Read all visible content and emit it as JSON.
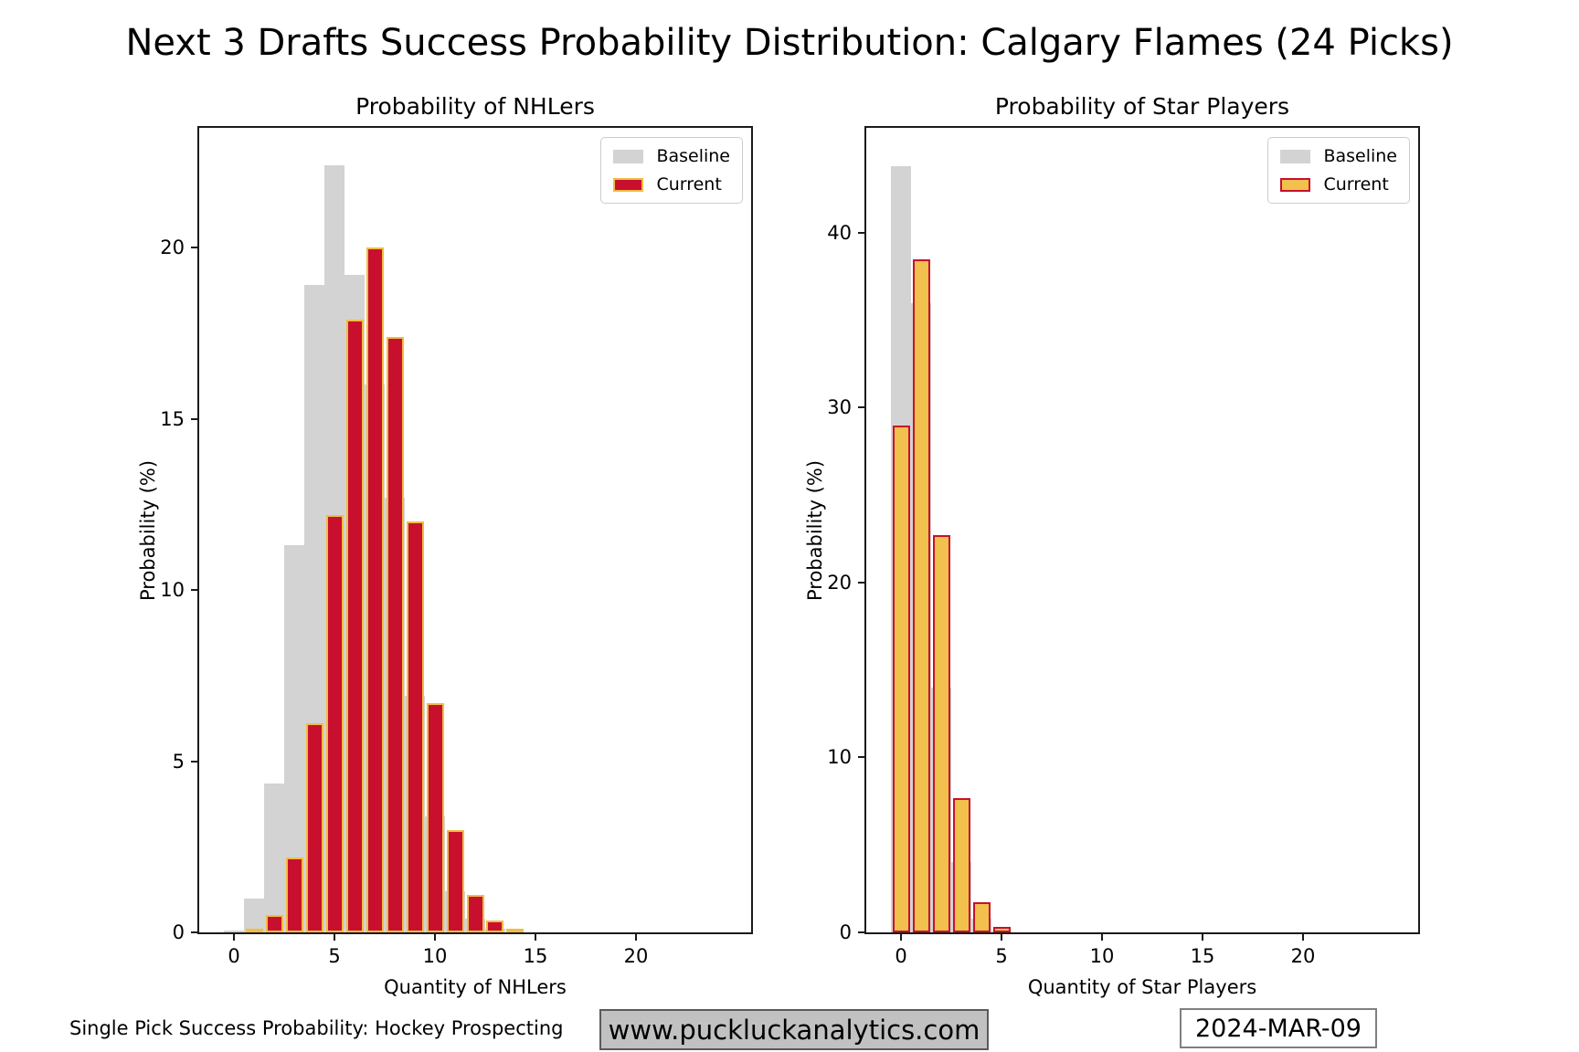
{
  "title": "Next 3 Drafts Success Probability Distribution: Calgary Flames (24 Picks)",
  "footer": {
    "attribution": "Single Pick Success Probability: Hockey Prospecting",
    "website": "www.puckluckanalytics.com",
    "date": "2024-MAR-09"
  },
  "colors": {
    "baseline_gray": "#d3d3d3",
    "flames_red": "#c8102e",
    "flames_gold": "#f1bc45",
    "axes_frame": "#1a1a1a"
  },
  "chart_data": [
    {
      "type": "bar",
      "title": "Probability of NHLers",
      "xlabel": "Quantity of NHLers",
      "ylabel": "Probability (%)",
      "legend": [
        "Baseline",
        "Current"
      ],
      "legend_position": "upper right",
      "grid": false,
      "x": [
        0,
        1,
        2,
        3,
        4,
        5,
        6,
        7,
        8,
        9,
        10,
        11,
        12,
        13,
        14
      ],
      "xlim": [
        -1.75,
        25.75
      ],
      "ylim": [
        0,
        23.5
      ],
      "xticks": [
        0,
        5,
        10,
        15,
        20
      ],
      "yticks": [
        0,
        5,
        10,
        15,
        20
      ],
      "series": [
        {
          "name": "Baseline",
          "fill": "#d3d3d3",
          "edge": null,
          "values": [
            0.06,
            1.0,
            4.35,
            11.3,
            18.9,
            22.4,
            19.2,
            16.0,
            12.7,
            6.9,
            3.4,
            1.2,
            0.4,
            0.1,
            0
          ]
        },
        {
          "name": "Current",
          "fill": "#c8102e",
          "edge": "#f1bc45",
          "values": [
            0,
            0.1,
            0.5,
            2.2,
            6.1,
            12.2,
            17.9,
            20.0,
            17.4,
            12.0,
            6.7,
            3.0,
            1.1,
            0.35,
            0.1
          ]
        }
      ]
    },
    {
      "type": "bar",
      "title": "Probability of Star Players",
      "xlabel": "Quantity of Star Players",
      "ylabel": "Probability (%)",
      "legend": [
        "Baseline",
        "Current"
      ],
      "legend_position": "upper right",
      "grid": false,
      "x": [
        0,
        1,
        2,
        3,
        4,
        5
      ],
      "xlim": [
        -1.75,
        25.75
      ],
      "ylim": [
        0,
        46.0
      ],
      "xticks": [
        0,
        5,
        10,
        15,
        20
      ],
      "yticks": [
        0,
        10,
        20,
        30,
        40
      ],
      "series": [
        {
          "name": "Baseline",
          "fill": "#d3d3d3",
          "edge": null,
          "values": [
            43.8,
            36.0,
            14.0,
            4.0,
            0.8,
            0.1
          ]
        },
        {
          "name": "Current",
          "fill": "#f2c04d",
          "edge": "#c8102e",
          "values": [
            29.0,
            38.5,
            22.7,
            7.7,
            1.7,
            0.3
          ]
        }
      ]
    }
  ]
}
